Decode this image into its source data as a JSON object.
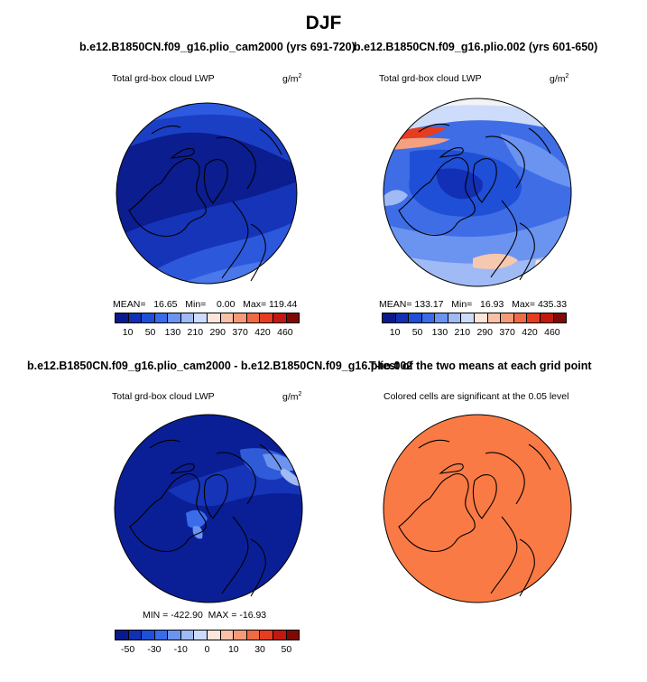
{
  "figure": {
    "title": "DJF"
  },
  "panels": [
    {
      "title": "b.e12.B1850CN.f09_g16.plio_cam2000 (yrs 691-720)",
      "variable": "Total grd-box cloud LWP",
      "units_base": "g/m",
      "units_exp": "2",
      "stats": "MEAN=   16.65   Min=    0.00   Max= 119.44"
    },
    {
      "title": "b.e12.B1850CN.f09_g16.plio.002 (yrs 601-650)",
      "variable": "Total grd-box cloud LWP",
      "units_base": "g/m",
      "units_exp": "2",
      "stats": "MEAN= 133.17   Min=   16.93   Max= 435.33"
    },
    {
      "title": "b.e12.B1850CN.f09_g16.plio_cam2000 - b.e12.B1850CN.f09_g16.plio.002",
      "variable": "Total grd-box cloud LWP",
      "units_base": "g/m",
      "units_exp": "2",
      "stats": "MIN = -422.90  MAX = -16.93"
    },
    {
      "title": "T-test of the two means at each grid point",
      "variable": "Colored cells are significant at the 0.05 level"
    }
  ],
  "colorbars": {
    "absolute": {
      "colors": [
        "#0a1a8c",
        "#1230b5",
        "#1f4fd6",
        "#3a6be8",
        "#6b93f0",
        "#9fbaf5",
        "#cddcfb",
        "#fbe6dc",
        "#f9c2a8",
        "#f59a78",
        "#ef6b45",
        "#e43d22",
        "#c2180f",
        "#7e0a06"
      ],
      "tick_labels": [
        "10",
        "50",
        "130",
        "210",
        "290",
        "370",
        "420",
        "460"
      ]
    },
    "difference": {
      "colors": [
        "#0a1a8c",
        "#1230b5",
        "#1f4fd6",
        "#3a6be8",
        "#6b93f0",
        "#9fbaf5",
        "#cddcfb",
        "#fbe6dc",
        "#f9c2a8",
        "#f59a78",
        "#ef6b45",
        "#e43d22",
        "#c2180f",
        "#7e0a06"
      ],
      "tick_labels": [
        "-50",
        "-30",
        "-10",
        "0",
        "10",
        "30",
        "50"
      ]
    }
  },
  "colors": {
    "deep_blue": "#0a1f96",
    "mid_blue": "#2a55d8",
    "light_blue": "#6b93f0",
    "significance_orange": "#fa7a45"
  }
}
